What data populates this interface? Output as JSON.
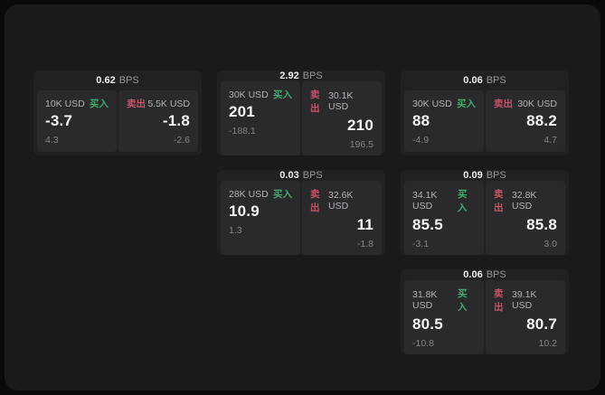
{
  "labels": {
    "bps_unit": "BPS",
    "buy": "买入",
    "sell": "卖出"
  },
  "colors": {
    "background": "#0a0a0a",
    "window_bg": "#1a1a1c",
    "card_bg": "#212124",
    "panel_bg": "#2a2a2d",
    "buy_green": "#40ab6d",
    "sell_red": "#c95364"
  },
  "cards": [
    {
      "bps": "0.62",
      "col": 1,
      "row": 1,
      "buy": {
        "amount": "10K USD",
        "price": "-3.7",
        "delta": "4.3"
      },
      "sell": {
        "amount": "5.5K USD",
        "price": "-1.8",
        "delta": "-2.6"
      }
    },
    {
      "bps": "2.92",
      "col": 2,
      "row": 1,
      "buy": {
        "amount": "30K USD",
        "price": "201",
        "delta": "-188.1"
      },
      "sell": {
        "amount": "30.1K USD",
        "price": "210",
        "delta": "196.5"
      }
    },
    {
      "bps": "0.06",
      "col": 3,
      "row": 1,
      "buy": {
        "amount": "30K USD",
        "price": "88",
        "delta": "-4.9"
      },
      "sell": {
        "amount": "30K USD",
        "price": "88.2",
        "delta": "4.7"
      }
    },
    {
      "bps": "0.03",
      "col": 2,
      "row": 2,
      "buy": {
        "amount": "28K USD",
        "price": "10.9",
        "delta": "1.3"
      },
      "sell": {
        "amount": "32.6K USD",
        "price": "11",
        "delta": "-1.8"
      }
    },
    {
      "bps": "0.09",
      "col": 3,
      "row": 2,
      "buy": {
        "amount": "34.1K USD",
        "price": "85.5",
        "delta": "-3.1"
      },
      "sell": {
        "amount": "32.8K USD",
        "price": "85.8",
        "delta": "3.0"
      }
    },
    {
      "bps": "0.06",
      "col": 3,
      "row": 3,
      "buy": {
        "amount": "31.8K USD",
        "price": "80.5",
        "delta": "-10.8"
      },
      "sell": {
        "amount": "39.1K USD",
        "price": "80.7",
        "delta": "10.2"
      }
    }
  ]
}
